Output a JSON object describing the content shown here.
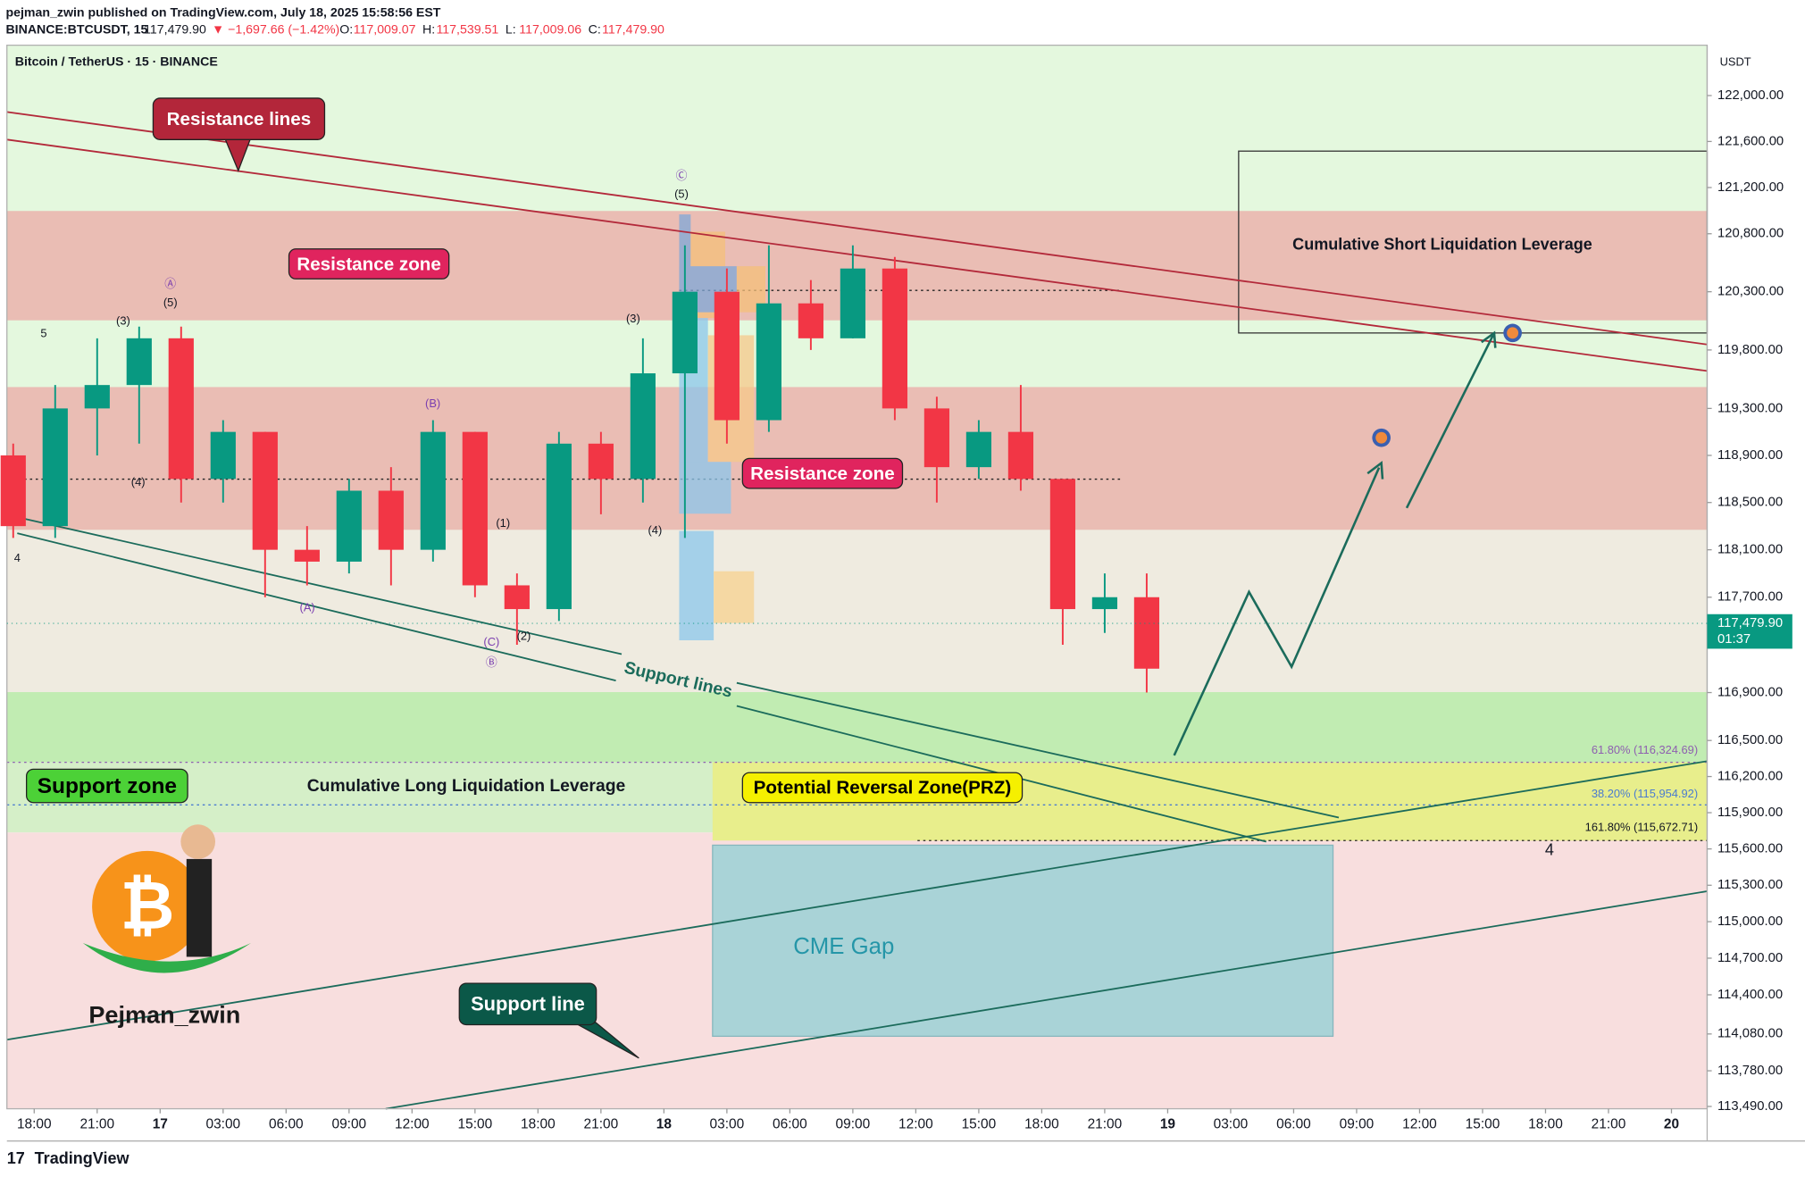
{
  "header": {
    "publisher": "pejman_zwin published on TradingView.com, July 18, 2025 15:58:56 EST",
    "symbol": "BINANCE:BTCUSDT, 15",
    "price": "117,479.90",
    "change": "▼ −1,697.66 (−1.42%)",
    "ohlc_labels": [
      "O:",
      "H:",
      "L:",
      "C:"
    ],
    "ohlc_values": [
      "117,009.07",
      "117,539.51",
      "117,009.06",
      "117,479.90"
    ]
  },
  "chart_data": {
    "type": "candlestick",
    "title": "Bitcoin / TetherUS · 15 · BINANCE",
    "y_unit": "USDT",
    "log_scale": true,
    "x": [
      -1,
      1,
      3,
      5,
      7,
      9,
      11,
      13,
      15,
      17,
      19,
      21,
      23,
      25,
      27,
      29,
      31,
      33,
      35,
      37,
      39,
      41,
      43,
      45,
      47,
      49,
      51,
      53
    ],
    "open": [
      118900,
      118300,
      119300,
      119500,
      119900,
      118700,
      119100,
      118100,
      118000,
      118600,
      118100,
      119100,
      117800,
      117600,
      119000,
      118700,
      119600,
      120300,
      119200,
      120200,
      119900,
      120500,
      119300,
      118800,
      119100,
      118700,
      117600,
      117700
    ],
    "high": [
      119000,
      119500,
      119900,
      120000,
      120000,
      119200,
      119100,
      118300,
      118700,
      118800,
      119200,
      119100,
      117900,
      119100,
      119100,
      119900,
      120700,
      120500,
      120700,
      120400,
      120700,
      120600,
      119400,
      119200,
      119500,
      118700,
      117900,
      117900
    ],
    "low": [
      118200,
      118200,
      118900,
      119000,
      118500,
      118500,
      117700,
      117800,
      117900,
      117800,
      118000,
      117700,
      117300,
      117500,
      118400,
      118500,
      118200,
      119000,
      119100,
      119800,
      119900,
      119200,
      118500,
      118700,
      118600,
      117300,
      117400,
      116900
    ],
    "close": [
      118300,
      119300,
      119500,
      119900,
      118700,
      119100,
      118100,
      118000,
      118600,
      118100,
      119100,
      117800,
      117600,
      119000,
      118700,
      119600,
      120300,
      119200,
      120200,
      119900,
      120500,
      119300,
      118800,
      119100,
      118700,
      117600,
      117700,
      117100
    ],
    "up_color": "#089981",
    "down_color": "#f23645",
    "xlim": [
      -1.3,
      79.7
    ],
    "xticks": [
      {
        "value": 0,
        "label": "18:00"
      },
      {
        "value": 3,
        "label": "21:00"
      },
      {
        "value": 6,
        "label": "17"
      },
      {
        "value": 9,
        "label": "03:00"
      },
      {
        "value": 12,
        "label": "06:00"
      },
      {
        "value": 15,
        "label": "09:00"
      },
      {
        "value": 18,
        "label": "12:00"
      },
      {
        "value": 21,
        "label": "15:00"
      },
      {
        "value": 24,
        "label": "18:00"
      },
      {
        "value": 27,
        "label": "21:00"
      },
      {
        "value": 30,
        "label": "18"
      },
      {
        "value": 33,
        "label": "03:00"
      },
      {
        "value": 36,
        "label": "06:00"
      },
      {
        "value": 39,
        "label": "09:00"
      },
      {
        "value": 42,
        "label": "12:00"
      },
      {
        "value": 45,
        "label": "15:00"
      },
      {
        "value": 48,
        "label": "18:00"
      },
      {
        "value": 51,
        "label": "21:00"
      },
      {
        "value": 54,
        "label": "19"
      },
      {
        "value": 57,
        "label": "03:00"
      },
      {
        "value": 60,
        "label": "06:00"
      },
      {
        "value": 63,
        "label": "09:00"
      },
      {
        "value": 66,
        "label": "12:00"
      },
      {
        "value": 69,
        "label": "15:00"
      },
      {
        "value": 72,
        "label": "18:00"
      },
      {
        "value": 75,
        "label": "21:00"
      },
      {
        "value": 78,
        "label": "20"
      }
    ],
    "ylim": [
      113490,
      122440
    ],
    "yticks": [
      {
        "value": 122000,
        "label": "122,000.00"
      },
      {
        "value": 121600,
        "label": "121,600.00"
      },
      {
        "value": 121200,
        "label": "121,200.00"
      },
      {
        "value": 120800,
        "label": "120,800.00"
      },
      {
        "value": 120300,
        "label": "120,300.00"
      },
      {
        "value": 119800,
        "label": "119,800.00"
      },
      {
        "value": 119300,
        "label": "119,300.00"
      },
      {
        "value": 118900,
        "label": "118,900.00"
      },
      {
        "value": 118500,
        "label": "118,500.00"
      },
      {
        "value": 118100,
        "label": "118,100.00"
      },
      {
        "value": 117700,
        "label": "117,700.00"
      },
      {
        "value": 116900,
        "label": "116,900.00"
      },
      {
        "value": 116500,
        "label": "116,500.00"
      },
      {
        "value": 116200,
        "label": "116,200.00"
      },
      {
        "value": 115900,
        "label": "115,900.00"
      },
      {
        "value": 115600,
        "label": "115,600.00"
      },
      {
        "value": 115300,
        "label": "115,300.00"
      },
      {
        "value": 115000,
        "label": "115,000.00"
      },
      {
        "value": 114700,
        "label": "114,700.00"
      },
      {
        "value": 114400,
        "label": "114,400.00"
      },
      {
        "value": 114080,
        "label": "114,080.00"
      },
      {
        "value": 113780,
        "label": "113,780.00"
      },
      {
        "value": 113490,
        "label": "113,490.00"
      }
    ],
    "last_price": {
      "value": 117479.9,
      "label": "117,479.90",
      "countdown": "01:37"
    },
    "annotations": [
      "Resistance lines",
      "Resistance zone",
      "Resistance zone",
      "Support lines",
      "Support zone",
      "Cumulative Long Liquidation Leverage",
      "Potential Reversal Zone(PRZ)",
      "CME Gap",
      "Support line",
      "Cumulative Short Liquidation Leverage",
      "61.80% (116,324.69)",
      "38.20% (115,954.92)",
      "161.80% (115,672.71)",
      "Pejman_zwin"
    ],
    "wave_labels": [
      "5",
      "(3)",
      "Ⓐ",
      "(5)",
      "(4)",
      "4",
      "(B)",
      "(A)",
      "(1)",
      "(C)",
      "Ⓑ",
      "(2)",
      "(3)",
      "(4)",
      "Ⓒ",
      "(5)",
      "4"
    ]
  },
  "footer": {
    "brand": "TradingView"
  }
}
